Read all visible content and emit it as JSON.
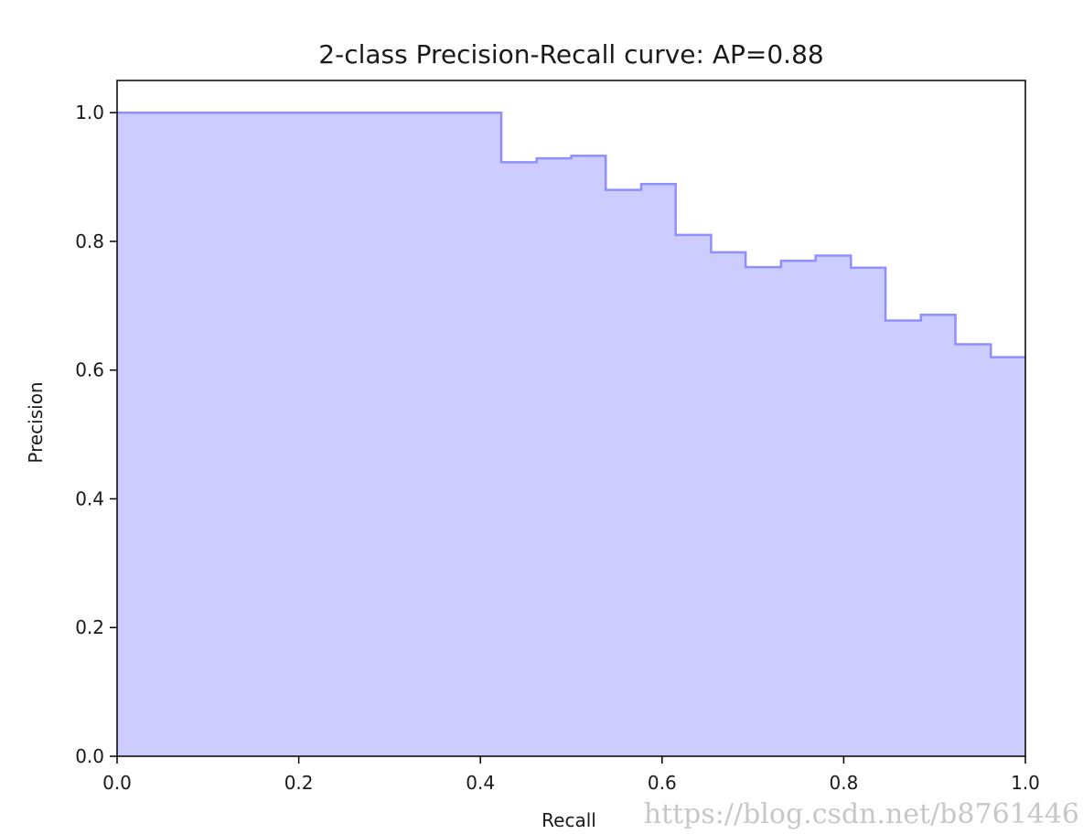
{
  "chart_data": {
    "type": "area",
    "title": "2-class Precision-Recall curve: AP=0.88",
    "xlabel": "Recall",
    "ylabel": "Precision",
    "xlim": [
      0.0,
      1.0
    ],
    "ylim": [
      0.0,
      1.05
    ],
    "xticks": [
      "0.0",
      "0.2",
      "0.4",
      "0.6",
      "0.8",
      "1.0"
    ],
    "yticks": [
      "0.0",
      "0.2",
      "0.4",
      "0.6",
      "0.8",
      "1.0"
    ],
    "grid": false,
    "step": "post",
    "series": [
      {
        "color": "#8f8fff",
        "fill_color": "#ccccff",
        "x": [
          0.0,
          0.423,
          0.462,
          0.5,
          0.538,
          0.577,
          0.615,
          0.654,
          0.692,
          0.731,
          0.769,
          0.808,
          0.846,
          0.885,
          0.923,
          0.962,
          1.0
        ],
        "y": [
          1.0,
          0.923,
          0.929,
          0.933,
          0.88,
          0.889,
          0.81,
          0.783,
          0.76,
          0.77,
          0.778,
          0.759,
          0.677,
          0.686,
          0.64,
          0.62,
          0.62
        ]
      }
    ]
  },
  "watermark": "https://blog.csdn.net/b8761446"
}
